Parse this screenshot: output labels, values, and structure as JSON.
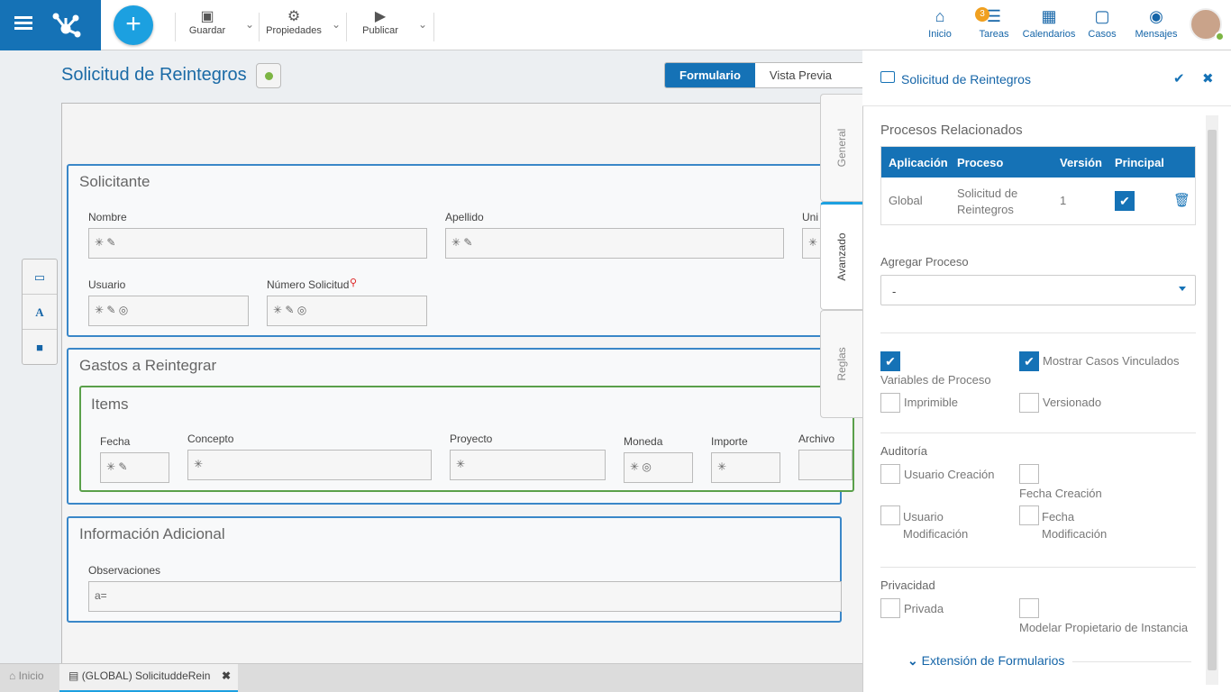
{
  "toolbar": {
    "save": "Guardar",
    "properties": "Propiedades",
    "publish": "Publicar"
  },
  "topnav": [
    {
      "label": "Inicio",
      "badge": ""
    },
    {
      "label": "Tareas",
      "badge": "3"
    },
    {
      "label": "Calendarios",
      "badge": ""
    },
    {
      "label": "Casos",
      "badge": ""
    },
    {
      "label": "Mensajes",
      "badge": ""
    }
  ],
  "form": {
    "title": "Solicitud de Reintegros",
    "tabs": [
      "Formulario",
      "Vista Previa"
    ],
    "panel1": {
      "title": "Solicitante",
      "fields": [
        "Nombre",
        "Apellido",
        "Uni",
        "Usuario",
        "Número Solicitud"
      ]
    },
    "panel2": {
      "title": "Gastos a Reintegrar",
      "grid_title": "Items",
      "cols": [
        "Fecha",
        "Concepto",
        "Proyecto",
        "Moneda",
        "Importe",
        "Archivo"
      ]
    },
    "panel3": {
      "title": "Información Adicional",
      "fields": [
        "Observaciones"
      ]
    }
  },
  "side_tabs": [
    "General",
    "Avanzado",
    "Reglas"
  ],
  "bottom_tabs": [
    "Inicio",
    "(GLOBAL) SolicituddeRein"
  ],
  "props": {
    "title": "Solicitud de Reintegros",
    "related": "Procesos Relacionados",
    "table_headers": [
      "Aplicación",
      "Proceso",
      "Versión",
      "Principal"
    ],
    "row": {
      "app": "Global",
      "process": "Solicitud de Reintegros",
      "version": "1"
    },
    "add_process": "Agregar Proceso",
    "select_value": "-",
    "checks": {
      "vars": "Variables de Proceso",
      "linked": "Mostrar Casos Vinculados",
      "printable": "Imprimible",
      "versioned": "Versionado"
    },
    "audit": "Auditoría",
    "audit_items": {
      "uc": "Usuario Creación",
      "fc": "Fecha Creación",
      "um": "Usuario Modificación",
      "fm": "Fecha Modificación"
    },
    "privacy": "Privacidad",
    "priv_items": {
      "private": "Privada",
      "owner": "Modelar Propietario de Instancia"
    },
    "extension": "Extensión de Formularios"
  },
  "colors": {
    "primary": "#1572b6",
    "accent": "#1ca0e0",
    "status": "#7db544",
    "badge": "#f0a020"
  }
}
